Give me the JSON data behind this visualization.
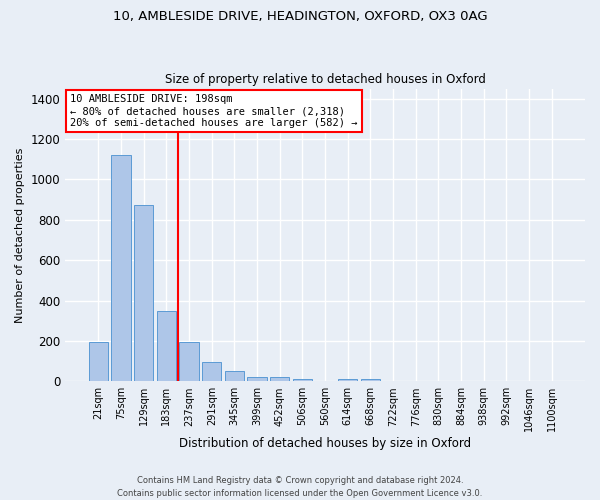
{
  "title_line1": "10, AMBLESIDE DRIVE, HEADINGTON, OXFORD, OX3 0AG",
  "title_line2": "Size of property relative to detached houses in Oxford",
  "xlabel": "Distribution of detached houses by size in Oxford",
  "ylabel": "Number of detached properties",
  "bar_labels": [
    "21sqm",
    "75sqm",
    "129sqm",
    "183sqm",
    "237sqm",
    "291sqm",
    "345sqm",
    "399sqm",
    "452sqm",
    "506sqm",
    "560sqm",
    "614sqm",
    "668sqm",
    "722sqm",
    "776sqm",
    "830sqm",
    "884sqm",
    "938sqm",
    "992sqm",
    "1046sqm",
    "1100sqm"
  ],
  "bar_values": [
    195,
    1120,
    875,
    350,
    193,
    95,
    50,
    22,
    20,
    14,
    0,
    12,
    12,
    0,
    0,
    0,
    0,
    0,
    0,
    0,
    0
  ],
  "bar_color": "#aec6e8",
  "bar_edge_color": "#5b9bd5",
  "red_line_x": 3.5,
  "red_line_label": "10 AMBLESIDE DRIVE: 198sqm",
  "annotation_line2": "← 80% of detached houses are smaller (2,318)",
  "annotation_line3": "20% of semi-detached houses are larger (582) →",
  "ylim": [
    0,
    1450
  ],
  "yticks": [
    0,
    200,
    400,
    600,
    800,
    1000,
    1200,
    1400
  ],
  "background_color": "#e8eef6",
  "grid_color": "#ffffff",
  "footer_line1": "Contains HM Land Registry data © Crown copyright and database right 2024.",
  "footer_line2": "Contains public sector information licensed under the Open Government Licence v3.0."
}
